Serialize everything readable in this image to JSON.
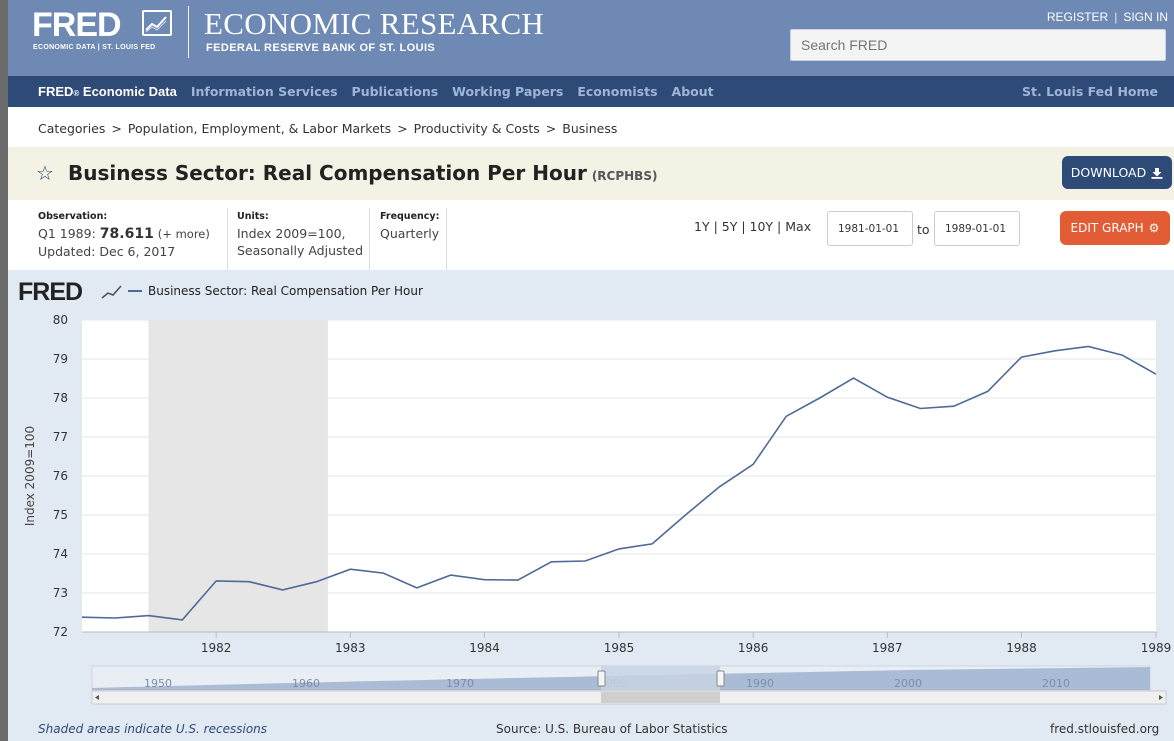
{
  "header": {
    "logo_text": "FRED",
    "logo_sub": "ECONOMIC DATA  |  ST. LOUIS FED",
    "title": "ECONOMIC RESEARCH",
    "subtitle": "FEDERAL RESERVE BANK OF ST. LOUIS",
    "register_label": "REGISTER",
    "signin_label": "SIGN IN",
    "search_placeholder": "Search FRED"
  },
  "nav": {
    "brand": "FRED",
    "brand_mark": "®",
    "brand_suffix": " Economic Data",
    "links": [
      "Information Services",
      "Publications",
      "Working Papers",
      "Economists",
      "About"
    ],
    "home": "St. Louis Fed Home"
  },
  "breadcrumb": [
    "Categories",
    "Population, Employment, & Labor Markets",
    "Productivity & Costs",
    "Business"
  ],
  "series": {
    "title": "Business Sector: Real Compensation Per Hour",
    "id": "(RCPHBS)",
    "download_label": "DOWNLOAD"
  },
  "info": {
    "observation_label": "Observation:",
    "observation_period": "Q1 1989:",
    "observation_value": "78.611",
    "observation_more": "(+ more)",
    "updated": "Updated: Dec 6, 2017",
    "units_label": "Units:",
    "units_line1": "Index 2009=100,",
    "units_line2": "Seasonally Adjusted",
    "frequency_label": "Frequency:",
    "frequency_value": "Quarterly"
  },
  "range": {
    "links": [
      "1Y",
      "5Y",
      "10Y",
      "Max"
    ],
    "start_date": "1981-01-01",
    "to_label": "to",
    "end_date": "1989-01-01",
    "edit_label": "EDIT GRAPH"
  },
  "chart_data": {
    "type": "line",
    "watermark": "FRED",
    "legend_label": "Business Sector: Real Compensation Per Hour",
    "ylabel": "Index 2009=100",
    "ylim": [
      72,
      80
    ],
    "yticks": [
      72,
      73,
      74,
      75,
      76,
      77,
      78,
      79,
      80
    ],
    "xlim": [
      "1981-01-01",
      "1989-01-01"
    ],
    "xticks": [
      "1982",
      "1983",
      "1984",
      "1985",
      "1986",
      "1987",
      "1988",
      "1989"
    ],
    "recession": [
      "1981-07-01",
      "1982-11-01"
    ],
    "series": [
      {
        "x": [
          "1981-01-01",
          "1981-04-01",
          "1981-07-01",
          "1981-10-01",
          "1982-01-01",
          "1982-04-01",
          "1982-07-01",
          "1982-10-01",
          "1983-01-01",
          "1983-04-01",
          "1983-07-01",
          "1983-10-01",
          "1984-01-01",
          "1984-04-01",
          "1984-07-01",
          "1984-10-01",
          "1985-01-01",
          "1985-04-01",
          "1985-07-01",
          "1985-10-01",
          "1986-01-01",
          "1986-04-01",
          "1986-07-01",
          "1986-10-01",
          "1987-01-01",
          "1987-04-01",
          "1987-07-01",
          "1987-10-01",
          "1988-01-01",
          "1988-04-01",
          "1988-07-01",
          "1988-10-01",
          "1989-01-01"
        ],
        "values": [
          72.38,
          72.36,
          72.42,
          72.31,
          73.31,
          73.29,
          73.08,
          73.29,
          73.61,
          73.51,
          73.13,
          73.46,
          73.34,
          73.33,
          73.8,
          73.82,
          74.13,
          74.26,
          75.0,
          75.72,
          76.3,
          77.53,
          78.0,
          78.51,
          78.02,
          77.73,
          77.79,
          78.17,
          79.05,
          79.21,
          79.32,
          79.1,
          78.611
        ],
        "color": "#4e6a97"
      }
    ],
    "navigator_ticks": [
      "1950",
      "1960",
      "1970",
      "1980",
      "1990",
      "2000",
      "2010"
    ]
  },
  "footer": {
    "recession_note": "Shaded areas indicate U.S. recessions",
    "source": "Source: U.S. Bureau of Labor Statistics",
    "site": "fred.stlouisfed.org"
  }
}
